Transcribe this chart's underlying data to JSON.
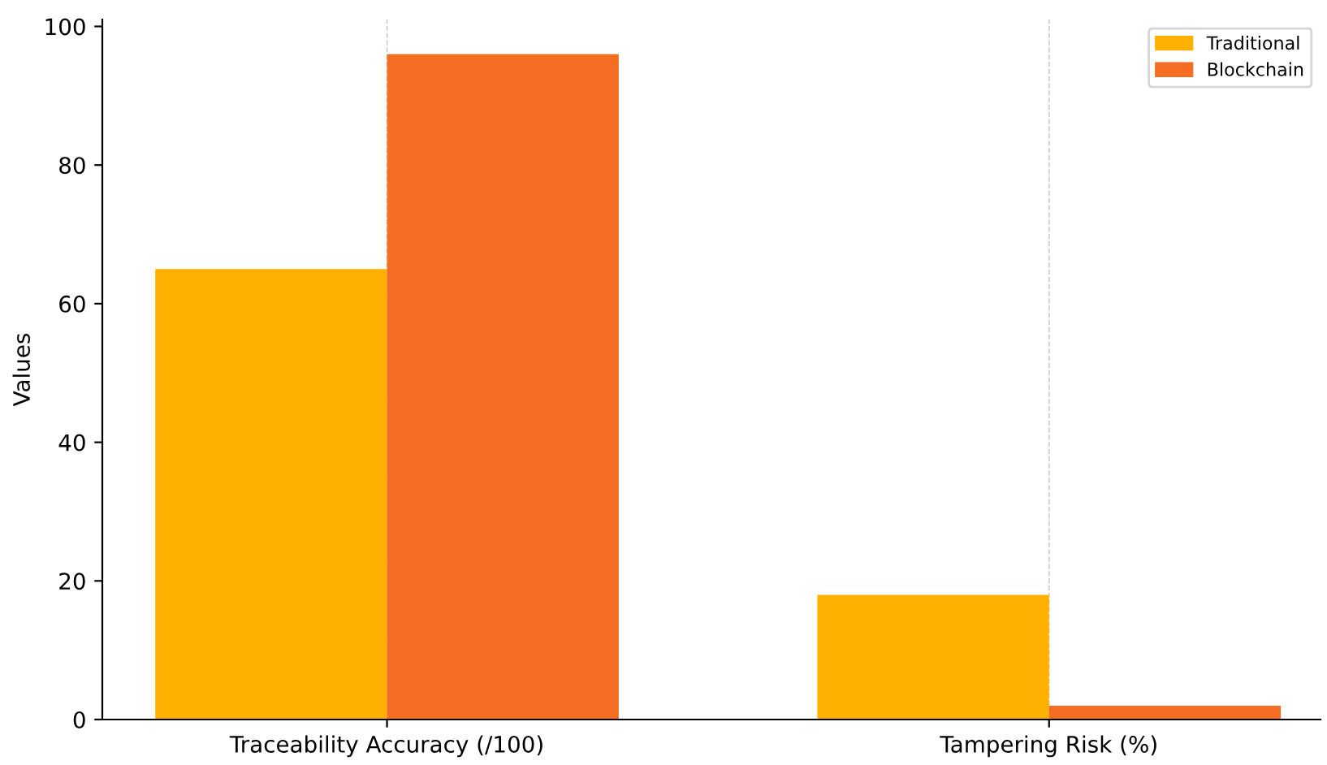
{
  "chart_data": {
    "type": "bar",
    "ylabel": "Values",
    "categories": [
      "Traceability Accuracy (/100)",
      "Tampering Risk (%)"
    ],
    "series": [
      {
        "name": "Traditional",
        "color": "#ffb000",
        "values": [
          65,
          18
        ]
      },
      {
        "name": "Blockchain",
        "color": "#f46d22",
        "values": [
          96,
          2
        ]
      }
    ],
    "ylim": [
      0,
      101
    ],
    "yticks": [
      0,
      20,
      40,
      60,
      80,
      100
    ],
    "grid": "x",
    "legend": "top right"
  }
}
